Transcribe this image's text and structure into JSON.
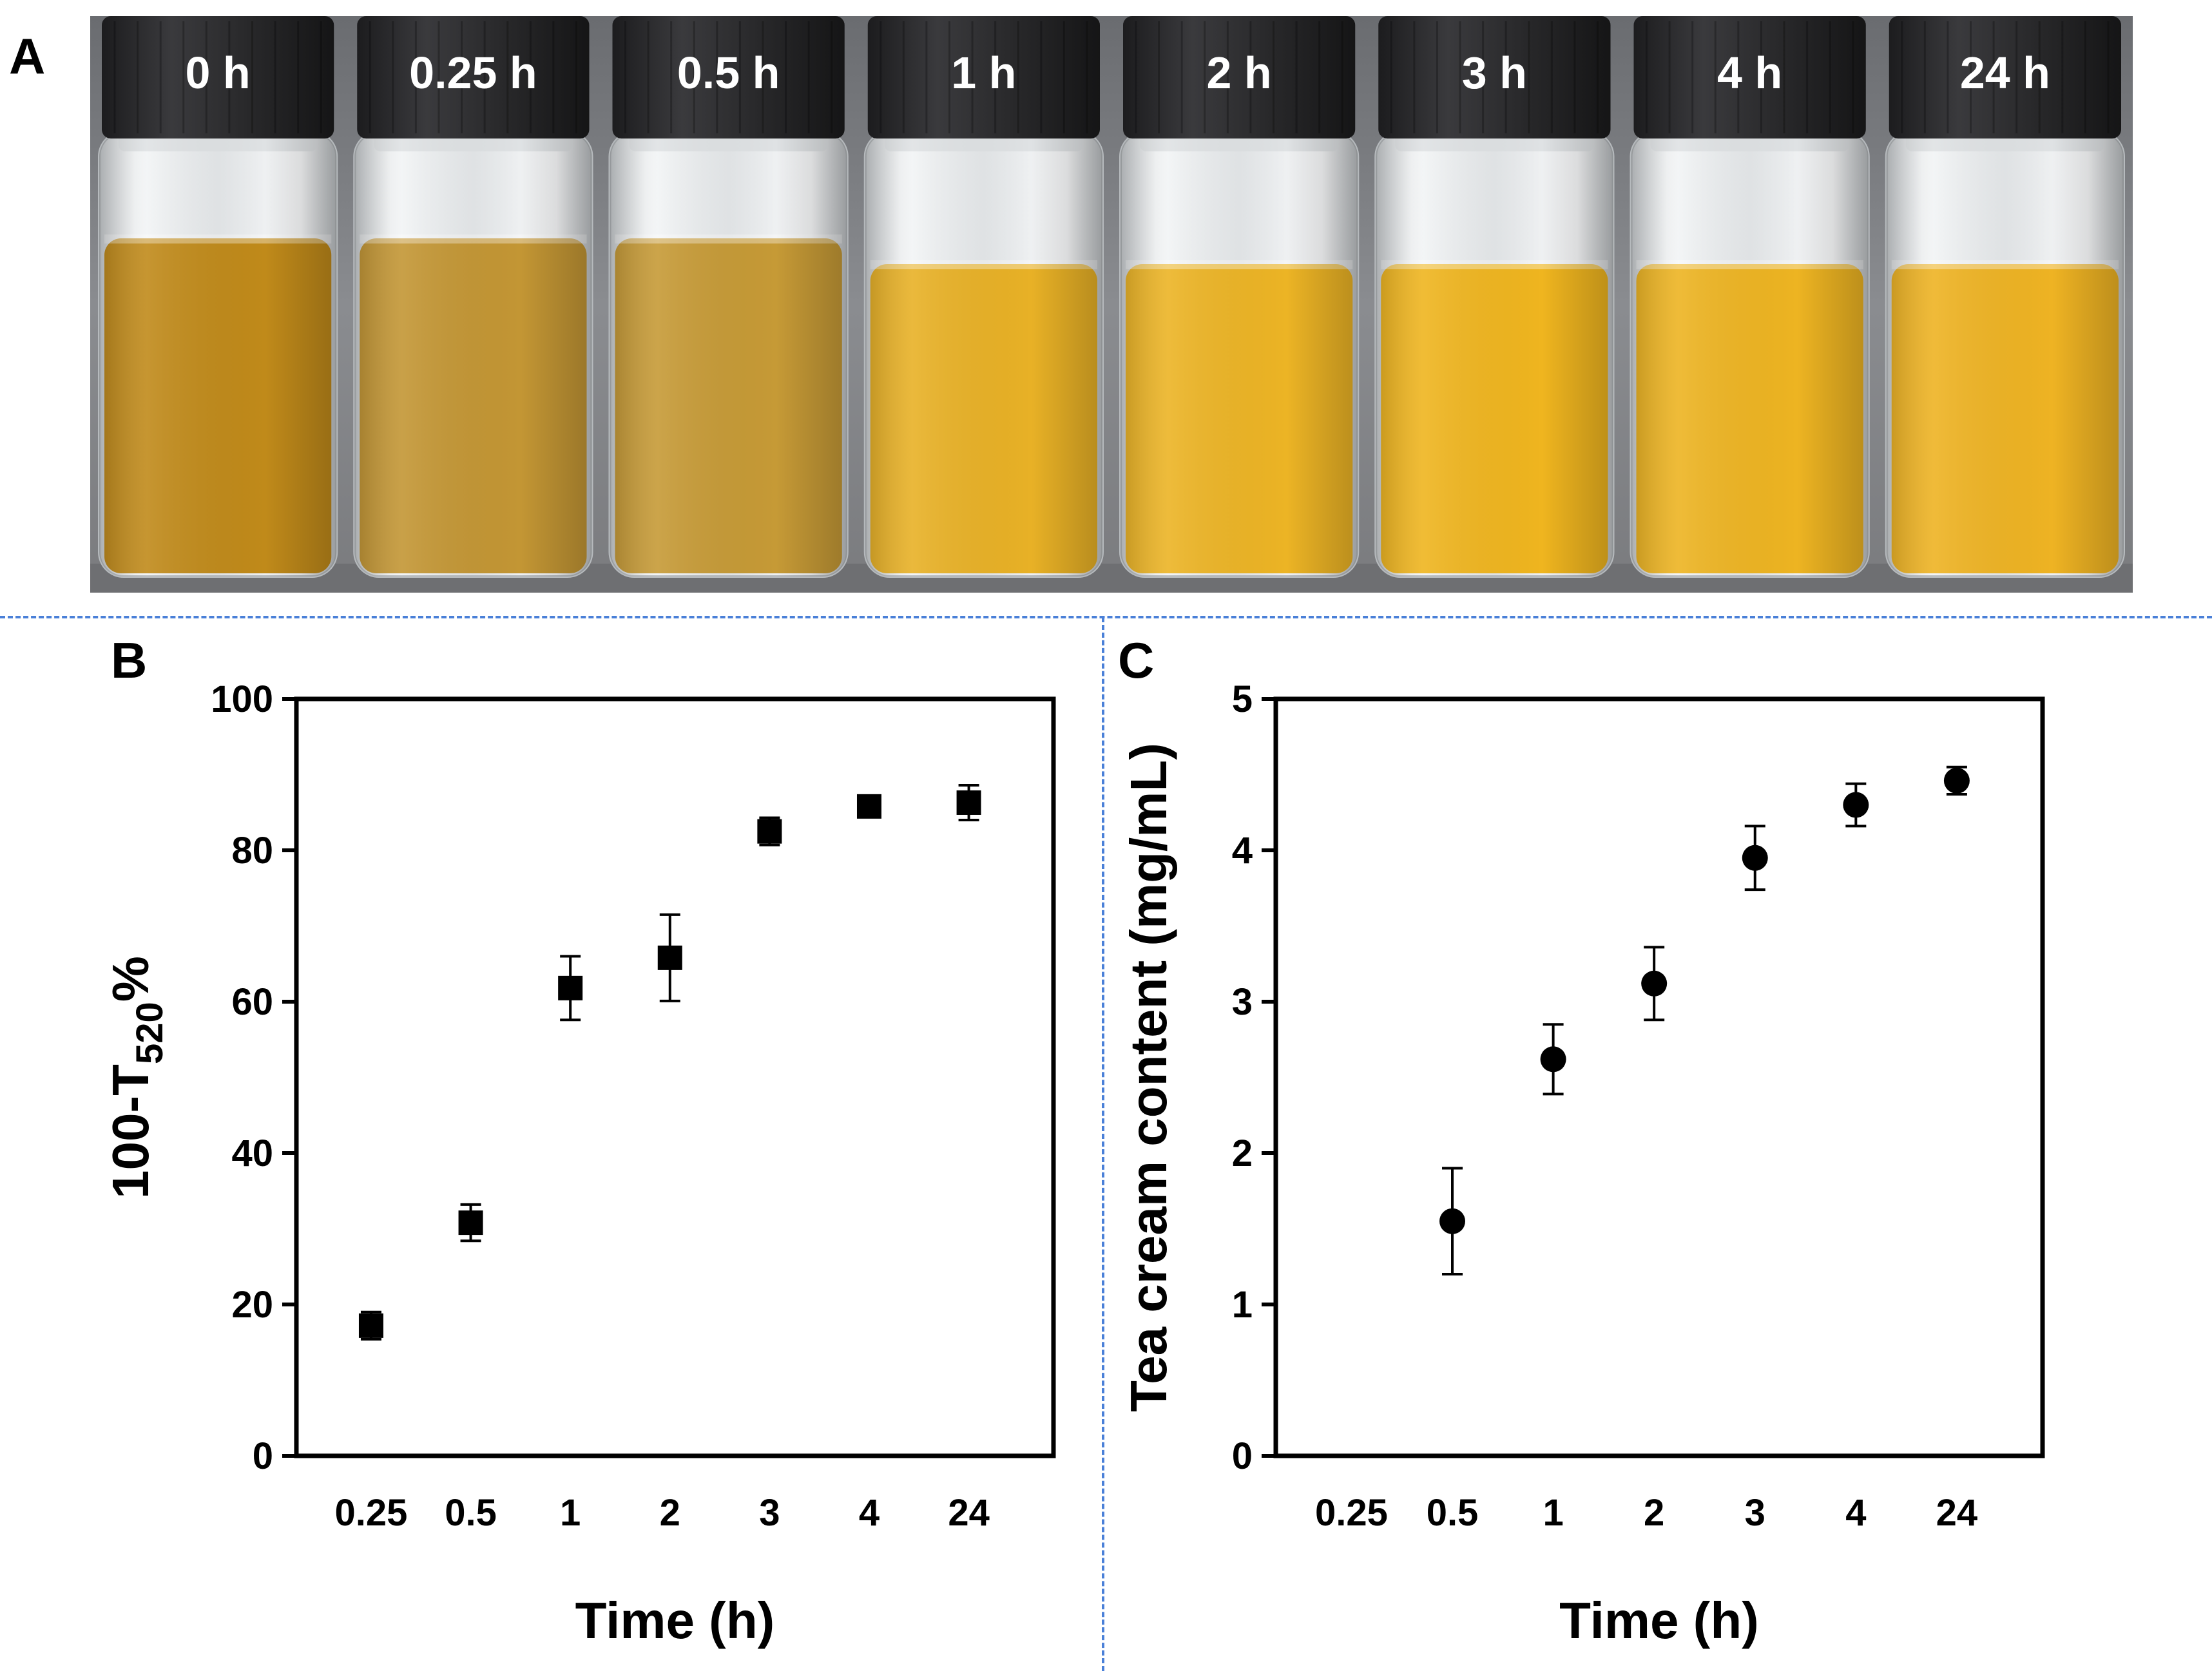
{
  "panels": {
    "a": "A",
    "b": "B",
    "c": "C"
  },
  "photo": {
    "vial_labels": [
      "0 h",
      "0.25 h",
      "0.5 h",
      "1 h",
      "2 h",
      "3 h",
      "4 h",
      "24 h"
    ],
    "liquid_colors": [
      "#c08a1a",
      "#c39634",
      "#c69a36",
      "#e8b126",
      "#ecb425",
      "#efb51f",
      "#edb422",
      "#eeb323"
    ]
  },
  "chart_data": [
    {
      "type": "scatter",
      "marker": "square",
      "categories": [
        "0.25",
        "0.5",
        "1",
        "2",
        "3",
        "4",
        "24"
      ],
      "values": [
        17.2,
        30.8,
        61.8,
        65.8,
        82.5,
        85.8,
        86.3
      ],
      "errors": [
        1.8,
        2.4,
        4.2,
        5.7,
        1.8,
        0.8,
        2.3
      ],
      "title": "",
      "xlabel": "Time (h)",
      "ylabel_main": "100-T",
      "ylabel_sub": "520",
      "ylabel_suffix": "%",
      "ylim": [
        0,
        100
      ],
      "yticks": [
        "0",
        "20",
        "40",
        "60",
        "80",
        "100"
      ]
    },
    {
      "type": "scatter",
      "marker": "circle",
      "categories": [
        "0.25",
        "0.5",
        "1",
        "2",
        "3",
        "4",
        "24"
      ],
      "values": [
        null,
        1.55,
        2.62,
        3.12,
        3.95,
        4.3,
        4.46
      ],
      "errors": [
        null,
        0.35,
        0.23,
        0.24,
        0.21,
        0.14,
        0.09
      ],
      "title": "",
      "xlabel": "Time (h)",
      "ylabel": "Tea cream content (mg/mL)",
      "ylim": [
        0,
        5
      ],
      "yticks": [
        "0",
        "1",
        "2",
        "3",
        "4",
        "5"
      ]
    }
  ]
}
